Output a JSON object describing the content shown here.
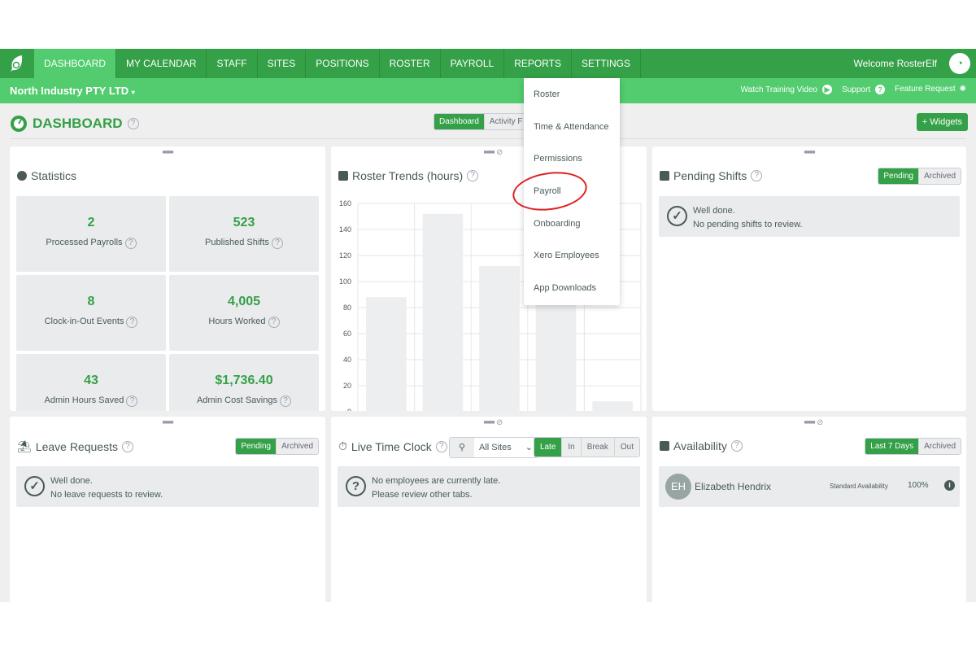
{
  "nav": {
    "items": [
      "DASHBOARD",
      "MY CALENDAR",
      "STAFF",
      "SITES",
      "POSITIONS",
      "ROSTER",
      "PAYROLL",
      "REPORTS",
      "SETTINGS"
    ],
    "active": "DASHBOARD",
    "welcome": "Welcome RosterElf"
  },
  "subbar": {
    "company": "North Industry PTY LTD",
    "watch": "Watch Training Video",
    "support": "Support",
    "feature": "Feature Request"
  },
  "page": {
    "title": "DASHBOARD",
    "tabs": [
      "Dashboard",
      "Activity F"
    ],
    "widgets_button": "+ Widgets"
  },
  "settings_menu": {
    "items": [
      "Roster",
      "Time & Attendance",
      "Permissions",
      "Payroll",
      "Onboarding",
      "Xero Employees",
      "App Downloads"
    ],
    "highlighted": "Payroll"
  },
  "statistics": {
    "title": "Statistics",
    "tiles": [
      {
        "value": "2",
        "label": "Processed Payrolls"
      },
      {
        "value": "523",
        "label": "Published Shifts"
      },
      {
        "value": "8",
        "label": "Clock-in-Out Events"
      },
      {
        "value": "4,005",
        "label": "Hours Worked"
      },
      {
        "value": "43",
        "label": "Admin Hours Saved"
      },
      {
        "value": "$1,736.40",
        "label": "Admin Cost Savings"
      }
    ]
  },
  "roster_trends": {
    "title": "Roster Trends (hours)"
  },
  "chart_data": {
    "type": "bar",
    "title": "Roster Trends (hours)",
    "values": [
      88,
      152,
      112,
      90,
      8
    ],
    "yticks": [
      "0",
      "20",
      "40",
      "60",
      "80",
      "100",
      "120",
      "140",
      "160"
    ],
    "ylim": [
      0,
      160
    ],
    "grid": true,
    "bar_color": "#eceeef"
  },
  "pending_shifts": {
    "title": "Pending Shifts",
    "tabs": [
      "Pending",
      "Archived"
    ],
    "msg1": "Well done.",
    "msg2": "No pending shifts to review."
  },
  "leave_requests": {
    "title": "Leave Requests",
    "tabs": [
      "Pending",
      "Archived"
    ],
    "msg1": "Well done.",
    "msg2": "No leave requests to review."
  },
  "live_time_clock": {
    "title": "Live Time Clock",
    "site": "All Sites",
    "tabs": [
      "Late",
      "In",
      "Break",
      "Out"
    ],
    "msg1": "No employees are currently late.",
    "msg2": "Please review other tabs."
  },
  "availability": {
    "title": "Availability",
    "tabs": [
      "Last 7 Days",
      "Archived"
    ],
    "row": {
      "initials": "EH",
      "name": "Elizabeth Hendrix",
      "type": "Standard Availability",
      "percent": "100%"
    }
  },
  "colors": {
    "primary": "#34a047",
    "secondary": "#52cc6e",
    "annotation": "#e02020"
  }
}
